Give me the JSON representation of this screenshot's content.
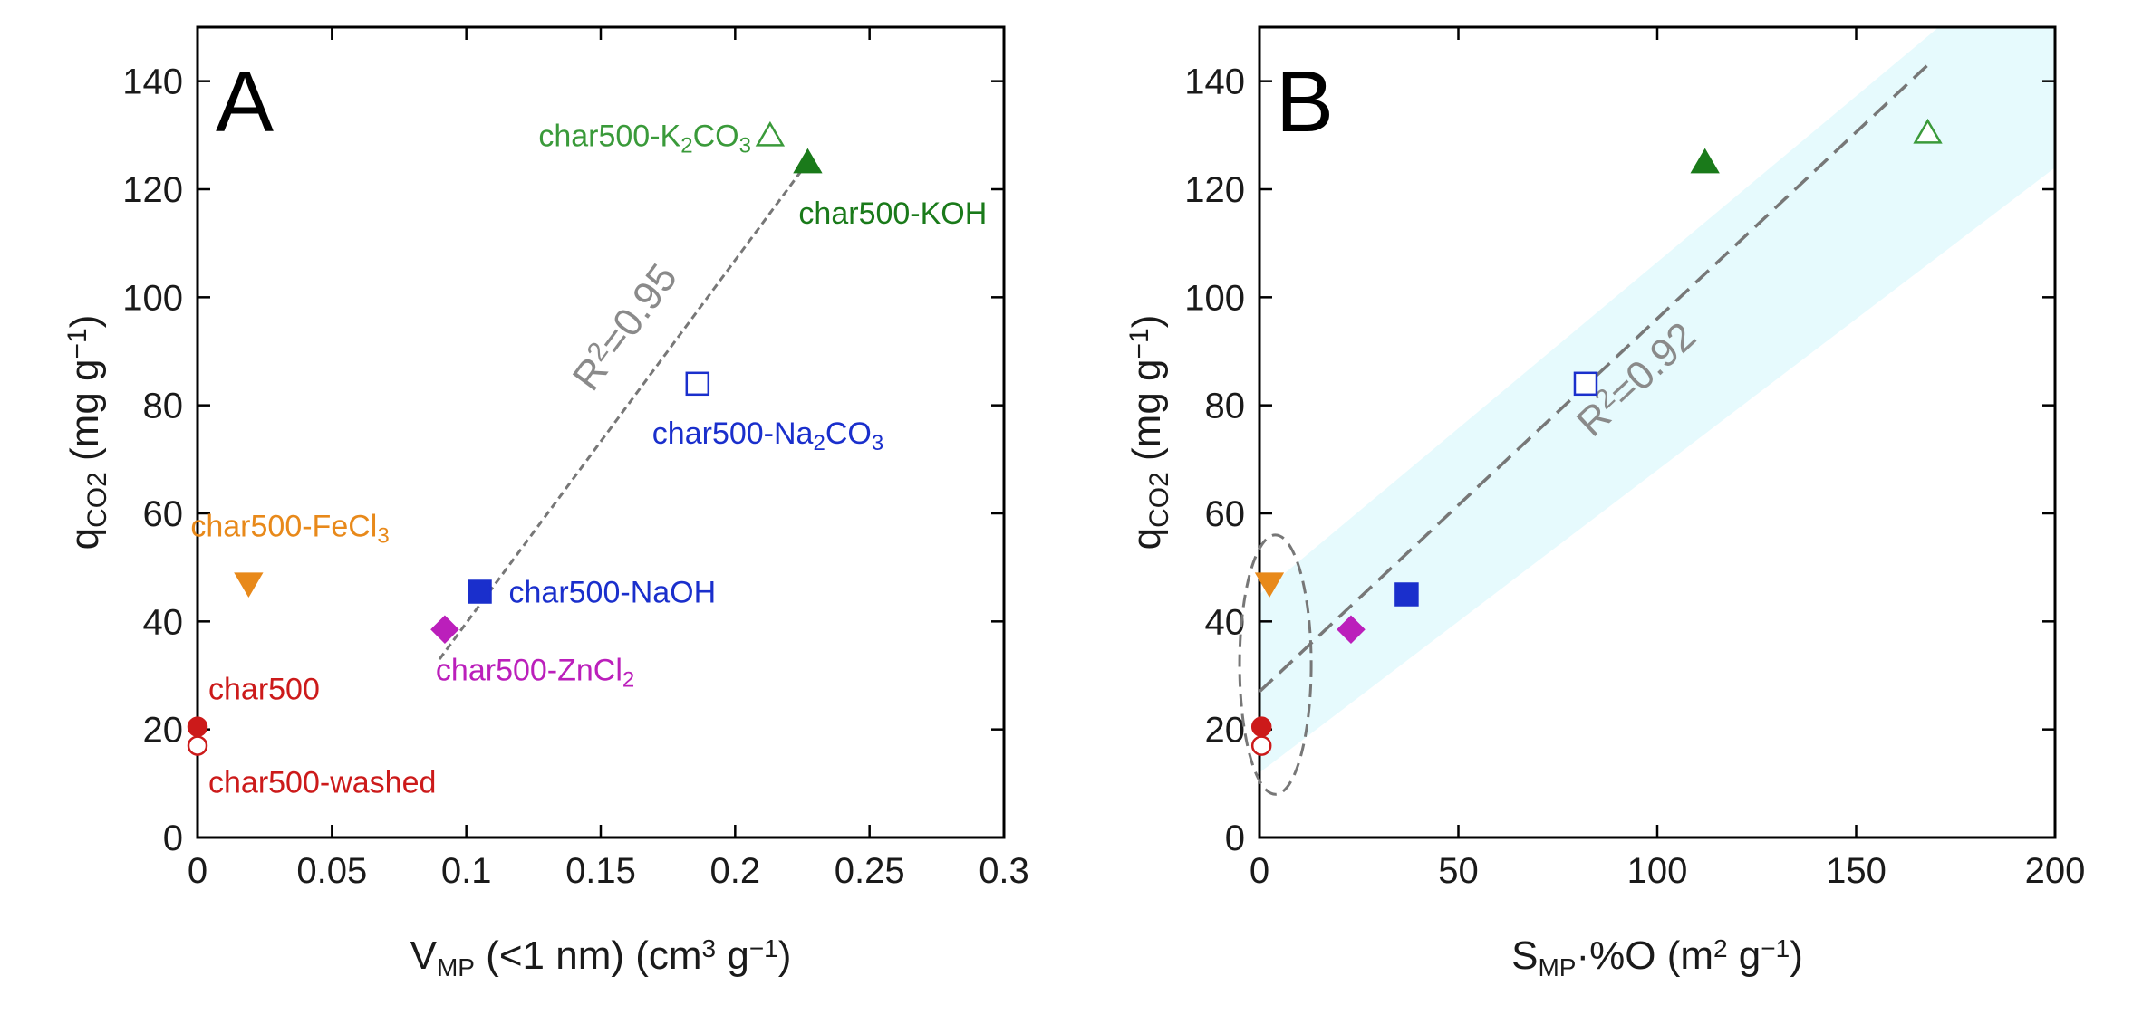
{
  "chart_data": [
    {
      "panel": "A",
      "type": "scatter",
      "xlim": [
        0,
        0.3
      ],
      "ylim": [
        0,
        150
      ],
      "xticks": [
        "0",
        "0.05",
        "0.1",
        "0.15",
        "0.2",
        "0.25",
        "0.3"
      ],
      "xtick_values": [
        0,
        0.05,
        0.1,
        0.15,
        0.2,
        0.25,
        0.3
      ],
      "yticks": [
        "0",
        "20",
        "40",
        "60",
        "80",
        "100",
        "120",
        "140"
      ],
      "ytick_values": [
        0,
        20,
        40,
        60,
        80,
        100,
        120,
        140
      ],
      "xlabel": {
        "main": "V",
        "sub": "MP",
        "rest": " (<1 nm) (cm",
        "sup": "3",
        "tail": " g",
        "sup2": "−1",
        "end": ")"
      },
      "ylabel": {
        "main": "q",
        "sub": "CO2",
        "rest": " (mg g",
        "sup": "−1",
        "end": ")"
      },
      "points": [
        {
          "name": "char500",
          "x": 0.0,
          "y": 20.5,
          "marker": "circle",
          "fill": true,
          "color": "#cc1a1a",
          "label": "char500"
        },
        {
          "name": "char500-washed",
          "x": 0.0,
          "y": 17,
          "marker": "circle",
          "fill": false,
          "color": "#cc1a1a",
          "label": "char500-washed"
        },
        {
          "name": "char500-FeCl3",
          "x": 0.019,
          "y": 47,
          "marker": "triangle-down",
          "fill": true,
          "color": "#e8891a",
          "label": "char500-FeCl",
          "label_sub": "3"
        },
        {
          "name": "char500-ZnCl2",
          "x": 0.092,
          "y": 38.5,
          "marker": "diamond",
          "fill": true,
          "color": "#bb1fbb",
          "label": "char500-ZnCl",
          "label_sub": "2"
        },
        {
          "name": "char500-NaOH",
          "x": 0.105,
          "y": 45.5,
          "marker": "square",
          "fill": true,
          "color": "#1a2fcc",
          "label": "char500-NaOH"
        },
        {
          "name": "char500-Na2CO3",
          "x": 0.186,
          "y": 84,
          "marker": "square",
          "fill": false,
          "color": "#1a2fcc",
          "label": "char500-Na",
          "label_sub": "2",
          "label_tail": "CO",
          "label_sub2": "3"
        },
        {
          "name": "char500-KOH",
          "x": 0.227,
          "y": 125,
          "marker": "triangle-up",
          "fill": true,
          "color": "#1a7a1a",
          "label": "char500-KOH"
        },
        {
          "name": "char500-K2CO3",
          "x": 0.213,
          "y": 130,
          "marker": "triangle-up",
          "fill": false,
          "color": "#3a9a3a",
          "label": "char500-K",
          "label_sub": "2",
          "label_tail": "CO",
          "label_sub2": "3"
        }
      ],
      "fit_line": {
        "x": [
          0.09,
          0.227
        ],
        "y": [
          33,
          125
        ],
        "style": "dashed",
        "color": "#777777"
      },
      "r2_label": {
        "prefix": "R",
        "sup": "2",
        "value": "=0.95"
      }
    },
    {
      "panel": "B",
      "type": "scatter",
      "xlim": [
        0,
        200
      ],
      "ylim": [
        0,
        150
      ],
      "xticks": [
        "0",
        "50",
        "100",
        "150",
        "200"
      ],
      "xtick_values": [
        0,
        50,
        100,
        150,
        200
      ],
      "yticks": [
        "0",
        "20",
        "40",
        "60",
        "80",
        "100",
        "120",
        "140"
      ],
      "ytick_values": [
        0,
        20,
        40,
        60,
        80,
        100,
        120,
        140
      ],
      "xlabel": {
        "main": "S",
        "sub": "MP",
        "rest": "·%O (m",
        "sup": "2",
        "tail": " g",
        "sup2": "−1",
        "end": ")"
      },
      "ylabel": {
        "main": "q",
        "sub": "CO2",
        "rest": " (mg g",
        "sup": "−1",
        "end": ")"
      },
      "points": [
        {
          "name": "char500",
          "x": 0.5,
          "y": 20.5,
          "marker": "circle",
          "fill": true,
          "color": "#cc1a1a"
        },
        {
          "name": "char500-washed",
          "x": 0.5,
          "y": 17,
          "marker": "circle",
          "fill": false,
          "color": "#cc1a1a"
        },
        {
          "name": "char500-FeCl3",
          "x": 2.5,
          "y": 47,
          "marker": "triangle-down",
          "fill": true,
          "color": "#e8891a"
        },
        {
          "name": "char500-ZnCl2",
          "x": 23,
          "y": 38.5,
          "marker": "diamond",
          "fill": true,
          "color": "#bb1fbb"
        },
        {
          "name": "char500-NaOH",
          "x": 37,
          "y": 45,
          "marker": "square",
          "fill": true,
          "color": "#1a2fcc"
        },
        {
          "name": "char500-Na2CO3",
          "x": 82,
          "y": 84,
          "marker": "square",
          "fill": false,
          "color": "#1a2fcc"
        },
        {
          "name": "char500-KOH",
          "x": 112,
          "y": 125,
          "marker": "triangle-up",
          "fill": true,
          "color": "#1a7a1a"
        },
        {
          "name": "char500-K2CO3",
          "x": 168,
          "y": 130.5,
          "marker": "triangle-up",
          "fill": false,
          "color": "#3a9a3a"
        }
      ],
      "fit_line": {
        "x": [
          0,
          168
        ],
        "y": [
          27,
          143
        ],
        "style": "dashed",
        "color": "#777777"
      },
      "confidence_band": {
        "upper": {
          "x": [
            0,
            200
          ],
          "y": [
            45,
            168
          ]
        },
        "lower": {
          "x": [
            0,
            200
          ],
          "y": [
            12,
            124
          ]
        },
        "color": "#e6fafd"
      },
      "ellipse": {
        "cx": 4,
        "cy": 32,
        "rx": 9,
        "ry": 24,
        "color": "#777777",
        "style": "dashed"
      },
      "r2_label": {
        "prefix": "R",
        "sup": "2",
        "value": "=0.92"
      }
    }
  ]
}
